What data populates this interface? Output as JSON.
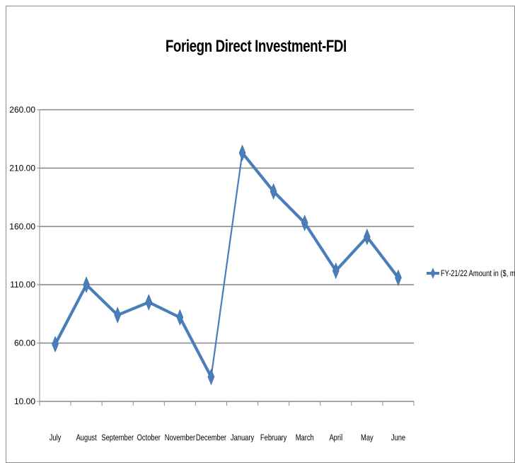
{
  "chart_data": {
    "type": "line",
    "title": "Foriegn Direct Investment-FDI",
    "xlabel": "",
    "ylabel": "",
    "categories": [
      "July",
      "August",
      "September",
      "October",
      "November",
      "December",
      "January",
      "February",
      "March",
      "April",
      "May",
      "June"
    ],
    "series": [
      {
        "name": "FY-21/22 Amount in ($, m",
        "values": [
          59,
          110,
          84,
          95,
          82,
          31,
          223,
          190,
          163,
          122,
          151,
          116
        ],
        "color": "#4a7ebb"
      }
    ],
    "ylim": [
      10,
      260
    ],
    "yticks": [
      "10.00",
      "60.00",
      "110.00",
      "160.00",
      "210.00",
      "260.00"
    ],
    "grid": true,
    "legend_position": "right",
    "marker": "diamond"
  }
}
